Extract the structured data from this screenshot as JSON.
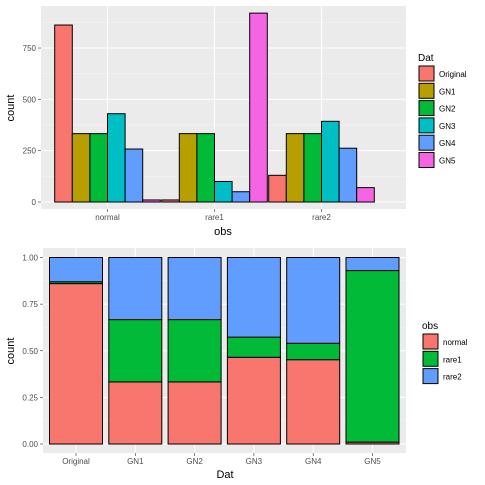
{
  "chart_data": [
    {
      "type": "bar",
      "position": "dodge",
      "xlabel": "obs",
      "ylabel": "count",
      "ylim": [
        0,
        920
      ],
      "yticks": [
        "0",
        "250",
        "500",
        "750"
      ],
      "ytick_values": [
        0,
        250,
        500,
        750
      ],
      "categories": [
        "normal",
        "rare1",
        "rare2"
      ],
      "legend": {
        "title": "Dat",
        "placement": "right"
      },
      "series": [
        {
          "name": "Original",
          "color": "#F8766D",
          "values": [
            862,
            10,
            130
          ]
        },
        {
          "name": "GN1",
          "color": "#B79F00",
          "values": [
            333,
            333,
            333
          ]
        },
        {
          "name": "GN2",
          "color": "#00BA38",
          "values": [
            333,
            333,
            333
          ]
        },
        {
          "name": "GN3",
          "color": "#00BFC4",
          "values": [
            430,
            100,
            393
          ]
        },
        {
          "name": "GN4",
          "color": "#619CFF",
          "values": [
            258,
            50,
            262
          ]
        },
        {
          "name": "GN5",
          "color": "#F564E3",
          "values": [
            10,
            920,
            70
          ]
        }
      ]
    },
    {
      "type": "bar",
      "position": "fill",
      "xlabel": "Dat",
      "ylabel": "count",
      "ylim": [
        0,
        1
      ],
      "yticks": [
        "0.00",
        "0.25",
        "0.50",
        "0.75",
        "1.00"
      ],
      "ytick_values": [
        0,
        0.25,
        0.5,
        0.75,
        1.0
      ],
      "categories": [
        "Original",
        "GN1",
        "GN2",
        "GN3",
        "GN4",
        "GN5"
      ],
      "legend": {
        "title": "obs",
        "placement": "right"
      },
      "series": [
        {
          "name": "normal",
          "color": "#F8766D",
          "values": [
            0.86,
            0.333,
            0.333,
            0.465,
            0.452,
            0.01
          ]
        },
        {
          "name": "rare1",
          "color": "#00BA38",
          "values": [
            0.01,
            0.334,
            0.334,
            0.108,
            0.088,
            0.92
          ]
        },
        {
          "name": "rare2",
          "color": "#619CFF",
          "values": [
            0.13,
            0.333,
            0.333,
            0.427,
            0.46,
            0.07
          ]
        }
      ]
    }
  ]
}
